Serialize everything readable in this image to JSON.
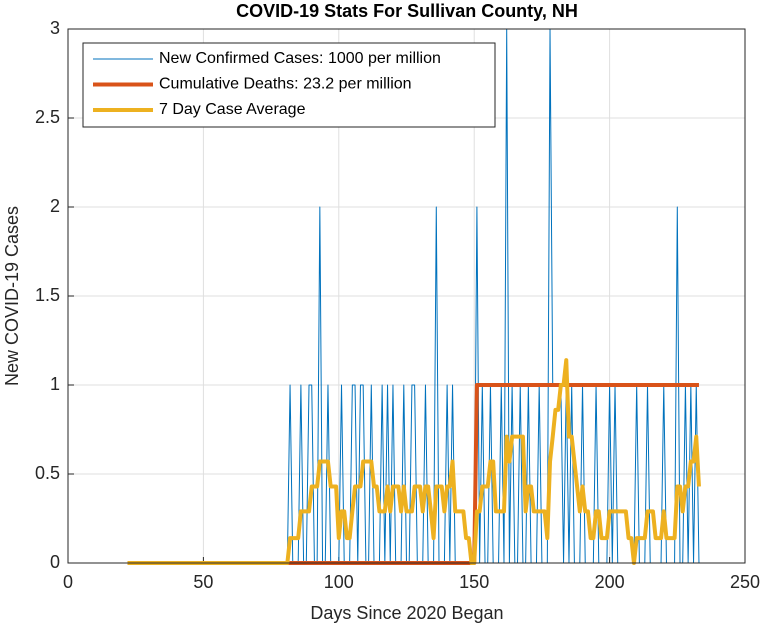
{
  "chart_data": {
    "type": "line",
    "title": "COVID-19 Stats For Sullivan County, NH",
    "x_label": "Days Since 2020 Began",
    "y_label": "New COVID-19 Cases",
    "x": [
      22,
      23,
      24,
      25,
      26,
      27,
      28,
      29,
      30,
      31,
      32,
      33,
      34,
      35,
      36,
      37,
      38,
      39,
      40,
      41,
      42,
      43,
      44,
      45,
      46,
      47,
      48,
      49,
      50,
      51,
      52,
      53,
      54,
      55,
      56,
      57,
      58,
      59,
      60,
      61,
      62,
      63,
      64,
      65,
      66,
      67,
      68,
      69,
      70,
      71,
      72,
      73,
      74,
      75,
      76,
      77,
      78,
      79,
      80,
      81,
      82,
      83,
      84,
      85,
      86,
      87,
      88,
      89,
      90,
      91,
      92,
      93,
      94,
      95,
      96,
      97,
      98,
      99,
      100,
      101,
      102,
      103,
      104,
      105,
      106,
      107,
      108,
      109,
      110,
      111,
      112,
      113,
      114,
      115,
      116,
      117,
      118,
      119,
      120,
      121,
      122,
      123,
      124,
      125,
      126,
      127,
      128,
      129,
      130,
      131,
      132,
      133,
      134,
      135,
      136,
      137,
      138,
      139,
      140,
      141,
      142,
      143,
      144,
      145,
      146,
      147,
      148,
      149,
      150,
      151,
      152,
      153,
      154,
      155,
      156,
      157,
      158,
      159,
      160,
      161,
      162,
      163,
      164,
      165,
      166,
      167,
      168,
      169,
      170,
      171,
      172,
      173,
      174,
      175,
      176,
      177,
      178,
      179,
      180,
      181,
      182,
      183,
      184,
      185,
      186,
      187,
      188,
      189,
      190,
      191,
      192,
      193,
      194,
      195,
      196,
      197,
      198,
      199,
      200,
      201,
      202,
      203,
      204,
      205,
      206,
      207,
      208,
      209,
      210,
      211,
      212,
      213,
      214,
      215,
      216,
      217,
      218,
      219,
      220,
      221,
      222,
      223,
      224,
      225,
      226,
      227,
      228,
      229,
      230,
      231,
      232,
      233
    ],
    "series": [
      {
        "name": "New Confirmed Cases: 1000 per million",
        "color": "#0072bd",
        "width": 1,
        "values": [
          0,
          0,
          0,
          0,
          0,
          0,
          0,
          0,
          0,
          0,
          0,
          0,
          0,
          0,
          0,
          0,
          0,
          0,
          0,
          0,
          0,
          0,
          0,
          0,
          0,
          0,
          0,
          0,
          0,
          0,
          0,
          0,
          0,
          0,
          0,
          0,
          0,
          0,
          0,
          0,
          0,
          0,
          0,
          0,
          0,
          0,
          0,
          0,
          0,
          0,
          0,
          0,
          0,
          0,
          0,
          0,
          0,
          0,
          0,
          0,
          1,
          0,
          0,
          0,
          1,
          0,
          0,
          1,
          1,
          0,
          0,
          2,
          0,
          0,
          1,
          0,
          0,
          0,
          0,
          1,
          0,
          0,
          0,
          1,
          1,
          0,
          1,
          1,
          0,
          0,
          1,
          0,
          0,
          0,
          1,
          0,
          1,
          0,
          1,
          0,
          0,
          0,
          1,
          0,
          0,
          1,
          1,
          0,
          0,
          0,
          1,
          0,
          0,
          0,
          2,
          0,
          0,
          0,
          1,
          0,
          1,
          0,
          0,
          0,
          0,
          0,
          0,
          0,
          0,
          2,
          0,
          1,
          0,
          0,
          1,
          0,
          0,
          0,
          1,
          0,
          3,
          0,
          1,
          0,
          0,
          1,
          0,
          0,
          1,
          0,
          0,
          0,
          1,
          0,
          0,
          0,
          3,
          1,
          1,
          1,
          1,
          0,
          1,
          0,
          1,
          0,
          0,
          0,
          1,
          0,
          0,
          0,
          0,
          1,
          0,
          0,
          0,
          0,
          1,
          0,
          1,
          0,
          0,
          0,
          0,
          0,
          0,
          0,
          1,
          0,
          0,
          0,
          1,
          0,
          0,
          0,
          0,
          0,
          1,
          0,
          0,
          0,
          0,
          2,
          0,
          0,
          1,
          0,
          1,
          0,
          1,
          0
        ]
      },
      {
        "name": "Cumulative Deaths: 23.2 per million",
        "color": "#d95319",
        "width": 4,
        "values": [
          0,
          0,
          0,
          0,
          0,
          0,
          0,
          0,
          0,
          0,
          0,
          0,
          0,
          0,
          0,
          0,
          0,
          0,
          0,
          0,
          0,
          0,
          0,
          0,
          0,
          0,
          0,
          0,
          0,
          0,
          0,
          0,
          0,
          0,
          0,
          0,
          0,
          0,
          0,
          0,
          0,
          0,
          0,
          0,
          0,
          0,
          0,
          0,
          0,
          0,
          0,
          0,
          0,
          0,
          0,
          0,
          0,
          0,
          0,
          0,
          0,
          0,
          0,
          0,
          0,
          0,
          0,
          0,
          0,
          0,
          0,
          0,
          0,
          0,
          0,
          0,
          0,
          0,
          0,
          0,
          0,
          0,
          0,
          0,
          0,
          0,
          0,
          0,
          0,
          0,
          0,
          0,
          0,
          0,
          0,
          0,
          0,
          0,
          0,
          0,
          0,
          0,
          0,
          0,
          0,
          0,
          0,
          0,
          0,
          0,
          0,
          0,
          0,
          0,
          0,
          0,
          0,
          0,
          0,
          0,
          0,
          0,
          0,
          0,
          0,
          0,
          0,
          0,
          0,
          1,
          1,
          1,
          1,
          1,
          1,
          1,
          1,
          1,
          1,
          1,
          1,
          1,
          1,
          1,
          1,
          1,
          1,
          1,
          1,
          1,
          1,
          1,
          1,
          1,
          1,
          1,
          1,
          1,
          1,
          1,
          1,
          1,
          1,
          1,
          1,
          1,
          1,
          1,
          1,
          1,
          1,
          1,
          1,
          1,
          1,
          1,
          1,
          1,
          1,
          1,
          1,
          1,
          1,
          1,
          1,
          1,
          1,
          1,
          1,
          1,
          1,
          1,
          1,
          1,
          1,
          1,
          1,
          1,
          1,
          1,
          1,
          1,
          1,
          1,
          1,
          1,
          1,
          1,
          1,
          1,
          1,
          1
        ]
      },
      {
        "name": "7 Day Case Average",
        "color": "#edb120",
        "width": 4,
        "values": [
          0,
          0,
          0,
          0,
          0,
          0,
          0,
          0,
          0,
          0,
          0,
          0,
          0,
          0,
          0,
          0,
          0,
          0,
          0,
          0,
          0,
          0,
          0,
          0,
          0,
          0,
          0,
          0,
          0,
          0,
          0,
          0,
          0,
          0,
          0,
          0,
          0,
          0,
          0,
          0,
          0,
          0,
          0,
          0,
          0,
          0,
          0,
          0,
          0,
          0,
          0,
          0,
          0,
          0,
          0,
          0,
          0,
          0,
          0,
          0,
          0.14,
          0.14,
          0.14,
          0.14,
          0.29,
          0.29,
          0.29,
          0.29,
          0.43,
          0.43,
          0.43,
          0.57,
          0.57,
          0.57,
          0.57,
          0.43,
          0.43,
          0.43,
          0.14,
          0.29,
          0.29,
          0.14,
          0.14,
          0.29,
          0.43,
          0.43,
          0.43,
          0.57,
          0.57,
          0.57,
          0.57,
          0.43,
          0.43,
          0.29,
          0.29,
          0.29,
          0.43,
          0.29,
          0.43,
          0.43,
          0.43,
          0.29,
          0.43,
          0.29,
          0.29,
          0.29,
          0.43,
          0.43,
          0.43,
          0.29,
          0.43,
          0.43,
          0.29,
          0.14,
          0.43,
          0.43,
          0.43,
          0.29,
          0.43,
          0.43,
          0.57,
          0.29,
          0.29,
          0.29,
          0.29,
          0.14,
          0.14,
          0,
          0,
          0.29,
          0.29,
          0.43,
          0.43,
          0.43,
          0.57,
          0.57,
          0.29,
          0.29,
          0.29,
          0.29,
          0.71,
          0.57,
          0.71,
          0.71,
          0.71,
          0.71,
          0.71,
          0.29,
          0.43,
          0.43,
          0.29,
          0.29,
          0.29,
          0.29,
          0.29,
          0.14,
          0.57,
          0.71,
          0.86,
          0.86,
          1,
          1,
          1.14,
          0.71,
          0.71,
          0.57,
          0.43,
          0.29,
          0.43,
          0.29,
          0.29,
          0.14,
          0.14,
          0.29,
          0.29,
          0.14,
          0.14,
          0.14,
          0.29,
          0.29,
          0.29,
          0.29,
          0.29,
          0.29,
          0.29,
          0.14,
          0.14,
          0,
          0.14,
          0.14,
          0.14,
          0.14,
          0.29,
          0.29,
          0.29,
          0.14,
          0.14,
          0.14,
          0.29,
          0.14,
          0.14,
          0.14,
          0.14,
          0.43,
          0.43,
          0.29,
          0.43,
          0.43,
          0.57,
          0.57,
          0.71,
          0.43
        ]
      }
    ],
    "xlim": [
      0,
      250
    ],
    "xticks": [
      0,
      50,
      100,
      150,
      200,
      250
    ],
    "ylim": [
      0,
      3
    ],
    "yticks": [
      0,
      0.5,
      1,
      1.5,
      2,
      2.5,
      3
    ],
    "grid": true,
    "legend": "top-left"
  }
}
